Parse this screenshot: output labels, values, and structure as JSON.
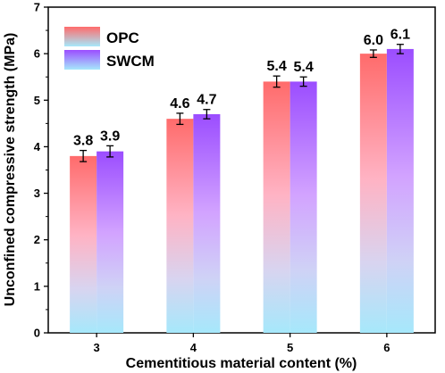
{
  "chart_data": {
    "type": "bar",
    "title": "",
    "xlabel": "Cementitious material content (%)",
    "ylabel": "Unconfined compressive strength (MPa)",
    "categories": [
      "3",
      "4",
      "5",
      "6"
    ],
    "ylim": [
      0,
      7
    ],
    "yticks": [
      0,
      1,
      2,
      3,
      4,
      5,
      6,
      7
    ],
    "grid": false,
    "legend_position": "top-left",
    "series": [
      {
        "name": "OPC",
        "values": [
          3.8,
          4.6,
          5.4,
          6.0
        ],
        "errors": [
          0.12,
          0.12,
          0.12,
          0.08
        ],
        "labels": [
          "3.8",
          "4.6",
          "5.4",
          "6.0"
        ],
        "color_top": "#ff6b6b",
        "color_bottom": "#a6e8fb"
      },
      {
        "name": "SWCM",
        "values": [
          3.9,
          4.7,
          5.4,
          6.1
        ],
        "errors": [
          0.12,
          0.1,
          0.1,
          0.1
        ],
        "labels": [
          "3.9",
          "4.7",
          "5.4",
          "6.1"
        ],
        "color_top": "#9b4dff",
        "color_bottom": "#a6e8fb"
      }
    ]
  }
}
